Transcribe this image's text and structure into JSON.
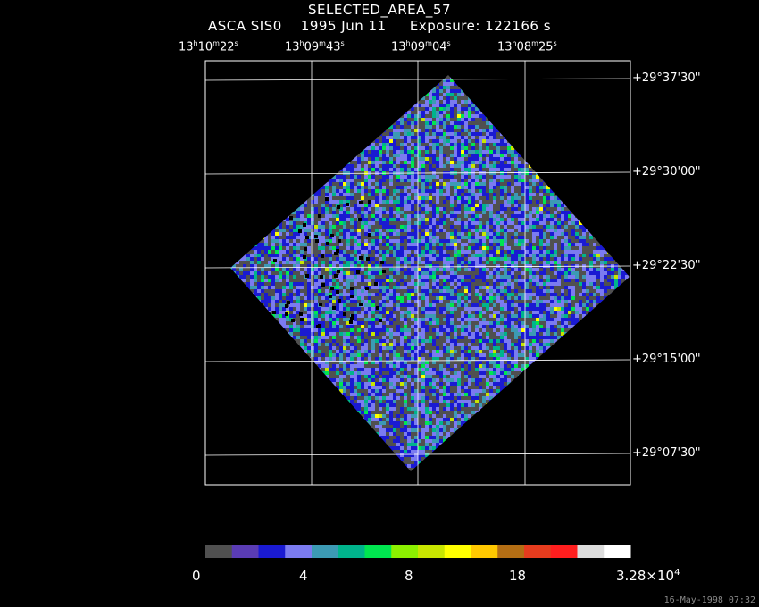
{
  "header": {
    "title": "SELECTED_AREA_57",
    "instrument": "ASCA SIS0",
    "date": "1995 Jun 11",
    "exposure": "Exposure: 122166 s"
  },
  "ra_labels": [
    {
      "h": "13",
      "m": "10",
      "s": "22"
    },
    {
      "h": "13",
      "m": "09",
      "s": "43"
    },
    {
      "h": "13",
      "m": "09",
      "s": "04"
    },
    {
      "h": "13",
      "m": "08",
      "s": "25"
    }
  ],
  "dec_labels": [
    "+29°37'30\"",
    "+29°30'00\"",
    "+29°22'30\"",
    "+29°15'00\"",
    "+29°07'30\""
  ],
  "colorbar": {
    "colors": [
      "#505050",
      "#5a3cb4",
      "#1a1ad2",
      "#7b7bf0",
      "#3c9ab4",
      "#00b48c",
      "#00e650",
      "#8cf000",
      "#c8e600",
      "#ffff00",
      "#ffc800",
      "#b46e14",
      "#e63c1e",
      "#ff1e1e",
      "#dcdcdc",
      "#ffffff"
    ],
    "label_0": "0",
    "label_4": "4",
    "label_8": "8",
    "label_18": "18",
    "label_max_mantissa": "3.28×10",
    "label_max_exp": "4"
  },
  "footer": {
    "timestamp": "16-May-1998 07:32"
  }
}
